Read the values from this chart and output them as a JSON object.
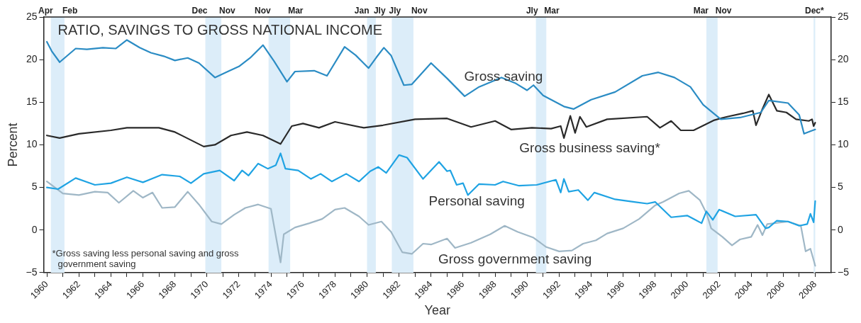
{
  "chart_data": {
    "type": "line",
    "title": "RATIO, SAVINGS TO GROSS NATIONAL INCOME",
    "xlabel": "Year",
    "ylabel": "Percent",
    "xlim": [
      1959.8,
      2009
    ],
    "xticks": [
      1960,
      {
        "value": 1961,
        "label": null
      },
      1962,
      {
        "value": 1963,
        "label": null
      },
      1964,
      {
        "value": 1965,
        "label": null
      },
      1966,
      {
        "value": 1967,
        "label": null
      },
      1968,
      {
        "value": 1969,
        "label": null
      },
      1970,
      {
        "value": 1971,
        "label": null
      },
      1972,
      {
        "value": 1973,
        "label": null
      },
      1974,
      {
        "value": 1975,
        "label": null
      },
      1976,
      {
        "value": 1977,
        "label": null
      },
      1978,
      {
        "value": 1979,
        "label": null
      },
      1980,
      {
        "value": 1981,
        "label": null
      },
      1982,
      {
        "value": 1983,
        "label": null
      },
      1984,
      {
        "value": 1985,
        "label": null
      },
      1986,
      {
        "value": 1987,
        "label": null
      },
      1988,
      {
        "value": 1989,
        "label": null
      },
      1990,
      {
        "value": 1991,
        "label": null
      },
      1992,
      {
        "value": 1993,
        "label": null
      },
      1994,
      {
        "value": 1995,
        "label": null
      },
      1996,
      {
        "value": 1997,
        "label": null
      },
      1998,
      {
        "value": 1999,
        "label": null
      },
      2000,
      {
        "value": 2001,
        "label": null
      },
      2002,
      {
        "value": 2003,
        "label": null
      },
      2004,
      {
        "value": 2005,
        "label": null
      },
      2006,
      {
        "value": 2007,
        "label": null
      },
      2008
    ],
    "ylim": [
      -5,
      25
    ],
    "yticks": [
      -5,
      0,
      5,
      10,
      15,
      20,
      25
    ],
    "y2lim": [
      -5,
      25
    ],
    "y2ticks": [
      -5,
      0,
      5,
      10,
      15,
      20,
      25
    ],
    "grid": false,
    "legend": false,
    "marker": "none",
    "line_style": "solid",
    "series": [
      {
        "name": "Gross saving",
        "color": "#2b8cc4",
        "x": [
          1960,
          1960.3,
          1960.8,
          1961.8,
          1962.5,
          1963.5,
          1964.3,
          1965,
          1965.8,
          1966.5,
          1967.3,
          1968,
          1968.8,
          1969.5,
          1970.5,
          1971.3,
          1972,
          1972.7,
          1973.5,
          1974.2,
          1975,
          1975.5,
          1976.7,
          1977.5,
          1978.6,
          1979.3,
          1980.1,
          1980.6,
          1981.05,
          1981.5,
          1982.3,
          1982.8,
          1984,
          1985,
          1986.1,
          1987,
          1988.4,
          1989.3,
          1990,
          1990.4,
          1991,
          1992.3,
          1992.9,
          1994,
          1995.5,
          1997.2,
          1998.2,
          1999.2,
          2000.2,
          2001,
          2002.1,
          2003.3,
          2004.6,
          2005.1,
          2006.3,
          2007,
          2007.3,
          2007.7,
          2008
        ],
        "values": [
          22.1,
          21,
          19.7,
          21.3,
          21.2,
          21.4,
          21.3,
          22.3,
          21.4,
          20.8,
          20.4,
          19.9,
          20.2,
          19.6,
          17.9,
          18.6,
          19.2,
          20.2,
          21.7,
          19.8,
          17.4,
          18.6,
          18.7,
          18.1,
          21.5,
          20.5,
          19,
          20.3,
          21.4,
          20.5,
          17,
          17.1,
          19.6,
          17.8,
          15.7,
          16.8,
          17.9,
          17.2,
          16.4,
          17,
          15.8,
          14.5,
          14.2,
          15.3,
          16.2,
          18.1,
          18.5,
          17.9,
          16.8,
          14.7,
          13,
          13.2,
          13.8,
          15.2,
          14.9,
          13.5,
          11.3,
          11.6,
          11.8
        ]
      },
      {
        "name": "Gross business saving*",
        "color": "#2a2a2a",
        "x": [
          1960,
          1960.8,
          1962,
          1964,
          1965,
          1967,
          1968,
          1969.8,
          1970.5,
          1971.5,
          1972.5,
          1973.5,
          1974.6,
          1975.3,
          1976,
          1977,
          1978,
          1979.8,
          1981,
          1983,
          1985,
          1986.5,
          1988,
          1989,
          1990.3,
          1991.5,
          1992.1,
          1992.3,
          1992.7,
          1993,
          1993.3,
          1993.7,
          1995,
          1997.5,
          1998.3,
          1999,
          1999.6,
          2000.4,
          2001.7,
          2002.5,
          2003.5,
          2004.1,
          2004.3,
          2004.7,
          2005.1,
          2005.6,
          2006.2,
          2006.8,
          2007.6,
          2007.8,
          2007.9,
          2008
        ],
        "values": [
          11.1,
          10.8,
          11.3,
          11.7,
          12,
          12,
          11.5,
          9.8,
          10,
          11.1,
          11.5,
          11.1,
          10.1,
          12.2,
          12.5,
          12,
          12.7,
          12,
          12.3,
          13,
          13.1,
          12.1,
          12.8,
          11.8,
          12,
          11.9,
          12.2,
          10.8,
          13.4,
          11.4,
          13.3,
          12.1,
          13,
          13.3,
          12,
          12.8,
          11.7,
          11.7,
          12.9,
          13.3,
          13.7,
          14,
          12.3,
          14.2,
          15.9,
          14,
          13.8,
          13,
          12.8,
          13,
          12.2,
          12.6
        ]
      },
      {
        "name": "Personal saving",
        "color": "#1fa3e3",
        "x": [
          1960,
          1960.7,
          1961.8,
          1963,
          1964,
          1965,
          1966,
          1967.2,
          1968.3,
          1969,
          1969.8,
          1970.8,
          1971.7,
          1972.2,
          1972.6,
          1973.2,
          1973.8,
          1974.3,
          1974.6,
          1974.9,
          1975.7,
          1976.5,
          1977.1,
          1977.8,
          1978.7,
          1979.5,
          1980.2,
          1980.7,
          1981.2,
          1982,
          1982.5,
          1983.5,
          1984.5,
          1985,
          1985.2,
          1985.6,
          1986,
          1986.3,
          1987,
          1988,
          1988.5,
          1989.5,
          1990.6,
          1991.8,
          1992.1,
          1992.3,
          1992.6,
          1993.2,
          1993.8,
          1994.2,
          1995.5,
          1996.7,
          1997.5,
          1998,
          1999,
          2000,
          2000.5,
          2000.9,
          2001.2,
          2001.6,
          2002,
          2003,
          2004.3,
          2004.9,
          2005.1,
          2005.6,
          2006.3,
          2007,
          2007.5,
          2007.7,
          2007.9,
          2008
        ],
        "values": [
          5,
          4.8,
          6.1,
          5.3,
          5.5,
          6.2,
          5.6,
          6.5,
          6.3,
          5.5,
          6.6,
          7,
          5.8,
          7,
          6.4,
          7.8,
          7.2,
          7.6,
          9,
          7.2,
          7,
          6,
          6.6,
          5.7,
          6.6,
          5.7,
          6.9,
          7.4,
          6.7,
          8.8,
          8.5,
          6,
          8,
          6.9,
          7,
          5.3,
          5.5,
          4.1,
          5.4,
          5.3,
          5.7,
          5.2,
          5.3,
          5.9,
          4.4,
          6,
          4.5,
          4.7,
          3.5,
          4.4,
          3.6,
          3.3,
          3.1,
          3.3,
          1.5,
          1.7,
          1.2,
          0.8,
          2.2,
          1.2,
          2.4,
          1.6,
          1.8,
          0.2,
          0.3,
          1.1,
          1,
          0.5,
          0.7,
          1.9,
          0.9,
          3.4
        ]
      },
      {
        "name": "Gross government saving",
        "color": "#9fb7c6",
        "x": [
          1960,
          1961,
          1962,
          1963,
          1963.8,
          1964.5,
          1965.4,
          1966,
          1966.6,
          1967.2,
          1968,
          1968.8,
          1969.5,
          1970.3,
          1970.9,
          1971.7,
          1972.4,
          1973.2,
          1974,
          1974.6,
          1974.8,
          1975.5,
          1976.4,
          1977.2,
          1978,
          1978.6,
          1979.5,
          1980.1,
          1980.9,
          1981.5,
          1982.2,
          1982.8,
          1983.5,
          1984,
          1985,
          1985.5,
          1986.5,
          1987.7,
          1988.6,
          1989.4,
          1990.4,
          1991.2,
          1992,
          1992.8,
          1993.5,
          1994.3,
          1995,
          1996,
          1997,
          1998,
          1998.5,
          1999.5,
          2000.1,
          2000.8,
          2001.2,
          2001.5,
          2002.2,
          2002.8,
          2003.3,
          2004,
          2004.4,
          2004.7,
          2005,
          2006.3,
          2007.1,
          2007.4,
          2007.7,
          2008
        ],
        "values": [
          5.7,
          4.3,
          4.1,
          4.5,
          4.4,
          3.2,
          4.6,
          3.8,
          4.4,
          2.6,
          2.7,
          4.5,
          3,
          1,
          0.7,
          1.8,
          2.6,
          3,
          2.5,
          -3.8,
          -0.5,
          0.3,
          0.8,
          1.3,
          2.4,
          2.6,
          1.6,
          0.6,
          1,
          -0.2,
          -2.6,
          -2.8,
          -1.6,
          -1.7,
          -1,
          -2.1,
          -1.5,
          -0.5,
          0.5,
          -0.2,
          -0.9,
          -2,
          -2.5,
          -2.4,
          -1.6,
          -1.2,
          -0.4,
          0.2,
          1.3,
          2.9,
          3.3,
          4.3,
          4.6,
          3.5,
          2,
          0.2,
          -0.8,
          -1.8,
          -1.1,
          -0.8,
          0.6,
          -0.6,
          0.7,
          1,
          0.5,
          -2.5,
          -2.2,
          -4.2
        ]
      }
    ],
    "bands": [
      {
        "axis": "x",
        "from": 1960.25,
        "to": 1961.1,
        "label": "Apr Feb",
        "color": "#dcedf9"
      },
      {
        "axis": "x",
        "from": 1969.9,
        "to": 1970.9,
        "label": "Dec Nov",
        "color": "#dcedf9"
      },
      {
        "axis": "x",
        "from": 1973.85,
        "to": 1975.2,
        "label": "Nov Mar",
        "color": "#dcedf9"
      },
      {
        "axis": "x",
        "from": 1980,
        "to": 1980.55,
        "label": "Jan Jly",
        "color": "#dcedf9"
      },
      {
        "axis": "x",
        "from": 1981.55,
        "to": 1982.9,
        "label": "Jly Nov",
        "color": "#dcedf9"
      },
      {
        "axis": "x",
        "from": 1990.55,
        "to": 1991.2,
        "label": "Jly Mar",
        "color": "#dcedf9"
      },
      {
        "axis": "x",
        "from": 2001.2,
        "to": 2001.9,
        "label": "Mar Nov",
        "color": "#dcedf9"
      },
      {
        "axis": "x",
        "from": 2007.9,
        "to": 2008,
        "label": "Dec*",
        "color": "#dcedf9"
      }
    ],
    "annotations": [
      "*Gross saving less personal saving and gross government saving"
    ]
  }
}
